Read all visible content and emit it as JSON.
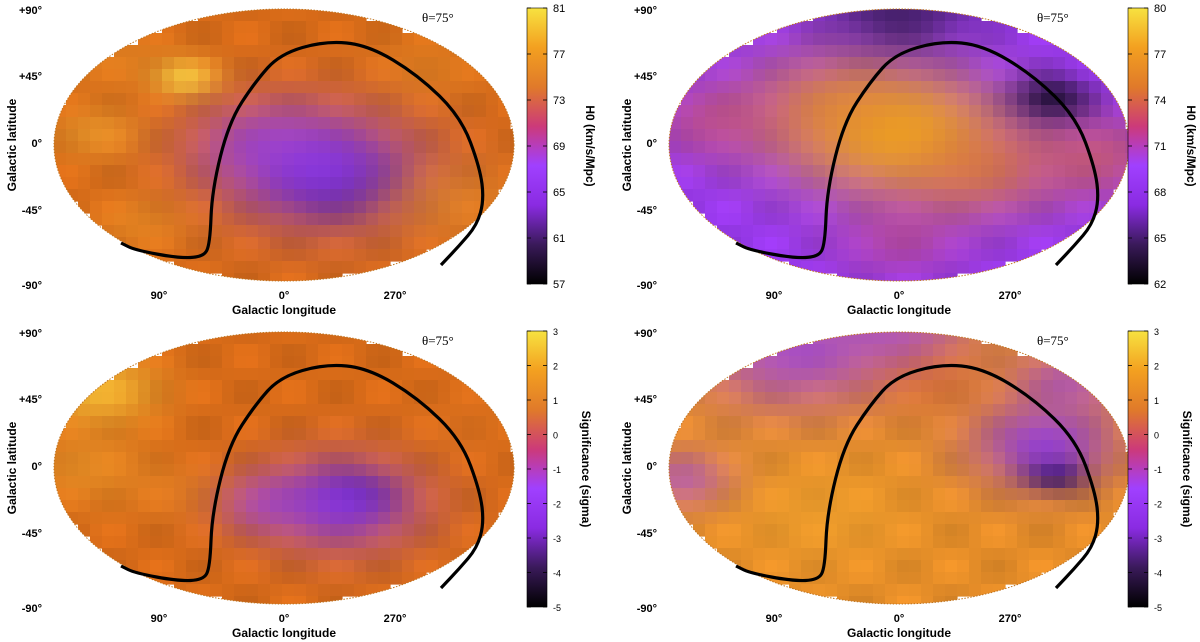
{
  "colormap": [
    "#000000",
    "#3a1a5a",
    "#8a2be2",
    "#a040ff",
    "#cc3a7a",
    "#e07a2a",
    "#f3a020",
    "#f7e240"
  ],
  "chart_data": [
    {
      "type": "heatmap",
      "projection": "aitoff",
      "annotation": "θ=75°",
      "xlabel": "Galactic longitude",
      "ylabel": "Galactic latitude",
      "xtick_labels": [
        "90°",
        "0°",
        "270°"
      ],
      "ytick_labels": [
        "+90°",
        "+45°",
        "0°",
        "-45°",
        "-90°"
      ],
      "colorbar": {
        "label": "H0 (km/s/Mpc)",
        "ticks": [
          "81",
          "77",
          "73",
          "69",
          "65",
          "61",
          "57"
        ],
        "range": [
          57,
          81
        ]
      },
      "bg": [
        214,
        106,
        24
      ],
      "blobs": [
        {
          "lon": -25,
          "lat": -15,
          "r": 0.17,
          "c": [
            20,
            10,
            35
          ],
          "k": 0.95
        },
        {
          "lon": -20,
          "lat": -10,
          "r": 0.3,
          "c": [
            140,
            55,
            230
          ],
          "k": 0.9
        },
        {
          "lon": 10,
          "lat": 0,
          "r": 0.22,
          "c": [
            150,
            60,
            240
          ],
          "k": 0.6
        },
        {
          "lon": 60,
          "lat": 30,
          "r": 0.1,
          "c": [
            250,
            215,
            70
          ],
          "k": 0.8
        },
        {
          "lon": 110,
          "lat": 5,
          "r": 0.14,
          "c": [
            238,
            170,
            50
          ],
          "k": 0.55
        },
        {
          "lon": 100,
          "lat": -35,
          "r": 0.16,
          "c": [
            238,
            155,
            40
          ],
          "k": 0.45
        },
        {
          "lon": -110,
          "lat": -25,
          "r": 0.2,
          "c": [
            232,
            150,
            38
          ],
          "k": 0.45
        },
        {
          "lon": -100,
          "lat": 35,
          "r": 0.18,
          "c": [
            232,
            145,
            38
          ],
          "k": 0.4
        },
        {
          "lon": 150,
          "lat": 40,
          "r": 0.18,
          "c": [
            232,
            150,
            40
          ],
          "k": 0.4
        }
      ]
    },
    {
      "type": "heatmap",
      "projection": "aitoff",
      "annotation": "θ=75°",
      "xlabel": "Galactic longitude",
      "ylabel": "Galactic latitude",
      "xtick_labels": [
        "90°",
        "0°",
        "270°"
      ],
      "ytick_labels": [
        "+90°",
        "+45°",
        "0°",
        "-45°",
        "-90°"
      ],
      "colorbar": {
        "label": "H0 (km/s/Mpc)",
        "ticks": [
          "80",
          "77",
          "74",
          "71",
          "68",
          "65",
          "62"
        ],
        "range": [
          62,
          80
        ]
      },
      "bg": [
        150,
        55,
        235
      ],
      "blobs": [
        {
          "lon": 0,
          "lat": 5,
          "r": 0.32,
          "c": [
            245,
            180,
            30
          ],
          "k": 0.95
        },
        {
          "lon": 30,
          "lat": 15,
          "r": 0.3,
          "c": [
            230,
            140,
            35
          ],
          "k": 0.7
        },
        {
          "lon": -40,
          "lat": -10,
          "r": 0.25,
          "c": [
            225,
            125,
            35
          ],
          "k": 0.65
        },
        {
          "lon": 110,
          "lat": 10,
          "r": 0.2,
          "c": [
            205,
            85,
            95
          ],
          "k": 0.55
        },
        {
          "lon": -120,
          "lat": -5,
          "r": 0.22,
          "c": [
            215,
            100,
            65
          ],
          "k": 0.6
        },
        {
          "lon": 0,
          "lat": -45,
          "r": 0.2,
          "c": [
            200,
            80,
            100
          ],
          "k": 0.45
        },
        {
          "lon": -90,
          "lat": 20,
          "r": 0.12,
          "c": [
            20,
            10,
            40
          ],
          "k": 0.85
        },
        {
          "lon": 0,
          "lat": 82,
          "r": 0.22,
          "c": [
            50,
            25,
            80
          ],
          "k": 0.8
        }
      ]
    },
    {
      "type": "heatmap",
      "projection": "aitoff",
      "annotation": "θ=75°",
      "xlabel": "Galactic longitude",
      "ylabel": "Galactic latitude",
      "xtick_labels": [
        "90°",
        "0°",
        "270°"
      ],
      "ytick_labels": [
        "+90°",
        "+45°",
        "0°",
        "-45°",
        "-90°"
      ],
      "colorbar": {
        "label": "Significance (sigma)",
        "ticks": [
          "3",
          "2",
          "1",
          "0",
          "-1",
          "-2",
          "-3",
          "-4",
          "-5"
        ],
        "range": [
          -5,
          3
        ]
      },
      "bg": [
        214,
        106,
        24
      ],
      "blobs": [
        {
          "lon": -35,
          "lat": -12,
          "r": 0.11,
          "c": [
            15,
            8,
            25
          ],
          "k": 0.95
        },
        {
          "lon": -30,
          "lat": -15,
          "r": 0.24,
          "c": [
            140,
            55,
            230
          ],
          "k": 0.9
        },
        {
          "lon": 10,
          "lat": -15,
          "r": 0.15,
          "c": [
            150,
            60,
            240
          ],
          "k": 0.55
        },
        {
          "lon": 160,
          "lat": 35,
          "r": 0.18,
          "c": [
            250,
            210,
            60
          ],
          "k": 0.7
        },
        {
          "lon": 120,
          "lat": 0,
          "r": 0.2,
          "c": [
            238,
            165,
            45
          ],
          "k": 0.5
        },
        {
          "lon": 60,
          "lat": -10,
          "r": 0.15,
          "c": [
            232,
            140,
            40
          ],
          "k": 0.4
        },
        {
          "lon": -120,
          "lat": 20,
          "r": 0.18,
          "c": [
            225,
            120,
            35
          ],
          "k": 0.35
        }
      ]
    },
    {
      "type": "heatmap",
      "projection": "aitoff",
      "annotation": "θ=75°",
      "xlabel": "Galactic longitude",
      "ylabel": "Galactic latitude",
      "xtick_labels": [
        "90°",
        "0°",
        "270°"
      ],
      "ytick_labels": [
        "+90°",
        "+45°",
        "0°",
        "-45°",
        "-90°"
      ],
      "colorbar": {
        "label": "Significance (sigma)",
        "ticks": [
          "3",
          "2",
          "1",
          "0",
          "-1",
          "-2",
          "-3",
          "-4",
          "-5"
        ],
        "range": [
          -5,
          3
        ]
      },
      "bg": [
        228,
        140,
        40
      ],
      "blobs": [
        {
          "lon": -85,
          "lat": -2,
          "r": 0.1,
          "c": [
            10,
            5,
            20
          ],
          "k": 0.95
        },
        {
          "lon": -80,
          "lat": 10,
          "r": 0.22,
          "c": [
            140,
            55,
            230
          ],
          "k": 0.85
        },
        {
          "lon": 130,
          "lat": 60,
          "r": 0.3,
          "c": [
            150,
            60,
            240
          ],
          "k": 0.75
        },
        {
          "lon": 140,
          "lat": -5,
          "r": 0.15,
          "c": [
            160,
            70,
            235
          ],
          "k": 0.6
        },
        {
          "lon": 0,
          "lat": 82,
          "r": 0.22,
          "c": [
            160,
            70,
            235
          ],
          "k": 0.65
        },
        {
          "lon": -150,
          "lat": 40,
          "r": 0.18,
          "c": [
            150,
            60,
            235
          ],
          "k": 0.6
        },
        {
          "lon": 40,
          "lat": -20,
          "r": 0.28,
          "c": [
            240,
            165,
            45
          ],
          "k": 0.55
        },
        {
          "lon": -20,
          "lat": 40,
          "r": 0.18,
          "c": [
            210,
            95,
            40
          ],
          "k": 0.45
        }
      ]
    }
  ]
}
